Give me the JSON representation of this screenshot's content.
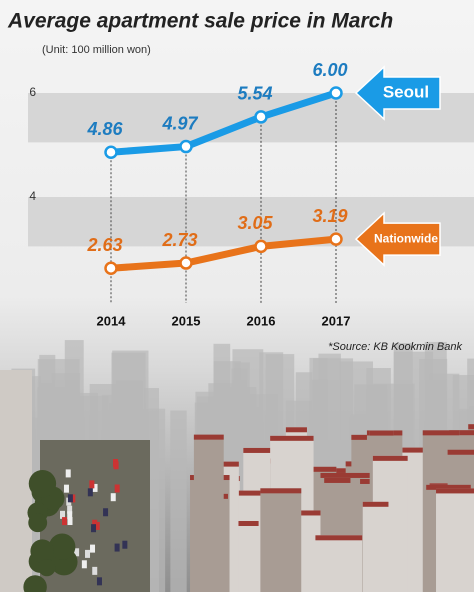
{
  "chart_data": {
    "type": "line",
    "title": "Average apartment sale price in March",
    "subtitle": "(Unit: 100 million won)",
    "source": "*Source: KB Kookmin Bank",
    "categories": [
      "2014",
      "2015",
      "2016",
      "2017"
    ],
    "series": [
      {
        "name": "Seoul",
        "color": "#1a9be6",
        "label_color": "#1d7cc0",
        "values": [
          4.86,
          4.97,
          5.54,
          6.0
        ],
        "value_labels": [
          "4.86",
          "4.97",
          "5.54",
          "6.00"
        ]
      },
      {
        "name": "Nationwide",
        "color": "#e8731a",
        "label_color": "#e06d18",
        "values": [
          2.63,
          2.73,
          3.05,
          3.19
        ],
        "value_labels": [
          "2.63",
          "2.73",
          "3.05",
          "3.19"
        ]
      }
    ],
    "ylim": [
      2,
      6.5
    ],
    "yticks": [
      4,
      6
    ]
  }
}
